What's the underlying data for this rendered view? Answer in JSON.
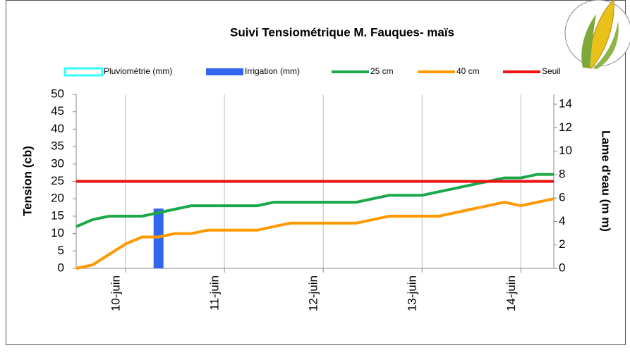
{
  "chart_data": {
    "type": "combo",
    "title": "Suivi Tensiométrique M. Fauques- maïs",
    "y_label": "Tension (cb)",
    "y2_label": "Lame d'eau (m m)",
    "categories": [
      null,
      null,
      null,
      "10-juin",
      null,
      null,
      null,
      null,
      null,
      "11-juin",
      null,
      null,
      null,
      null,
      null,
      "12-juin",
      null,
      null,
      null,
      null,
      null,
      "13-juin",
      null,
      null,
      null,
      null,
      null,
      "14-juin",
      null,
      null
    ],
    "ylim": [
      0,
      50
    ],
    "yticks": [
      0,
      5,
      10,
      15,
      20,
      25,
      30,
      35,
      40,
      45,
      50
    ],
    "y2lim": [
      0,
      14.84
    ],
    "y2ticks": [
      0,
      2,
      4,
      6,
      8,
      10,
      12,
      14
    ],
    "grid": "x",
    "series": [
      {
        "name": "Pluviométrie (mm)",
        "type": "bar",
        "axis": "y2",
        "color": "#33ffff",
        "values": [
          null,
          null,
          null,
          null,
          null,
          null,
          null,
          null,
          null,
          null,
          null,
          null,
          null,
          null,
          null,
          null,
          null,
          null,
          null,
          null,
          null,
          null,
          null,
          null,
          null,
          null,
          null,
          null,
          null,
          null
        ]
      },
      {
        "name": "Irrigation (mm)",
        "type": "bar",
        "axis": "y2",
        "color": "#3366ee",
        "values": [
          null,
          null,
          null,
          null,
          null,
          5.1,
          null,
          null,
          null,
          null,
          null,
          null,
          null,
          null,
          null,
          null,
          null,
          null,
          null,
          null,
          null,
          null,
          null,
          null,
          null,
          null,
          null,
          null,
          null,
          null
        ]
      },
      {
        "name": "25 cm",
        "type": "line",
        "color": "#1aa84a",
        "values": [
          12,
          14,
          15,
          15,
          15,
          16,
          17,
          18,
          18,
          18,
          18,
          18,
          19,
          19,
          19,
          19,
          19,
          19,
          20,
          21,
          21,
          21,
          22,
          23,
          24,
          25,
          26,
          26,
          27,
          27
        ]
      },
      {
        "name": "40 cm",
        "type": "line",
        "color": "#ff9900",
        "values": [
          0,
          1,
          4,
          7,
          9,
          9,
          10,
          10,
          11,
          11,
          11,
          11,
          12,
          13,
          13,
          13,
          13,
          13,
          14,
          15,
          15,
          15,
          15,
          16,
          17,
          18,
          19,
          18,
          19,
          20
        ]
      },
      {
        "name": "Seuil",
        "type": "line",
        "color": "#ee1111",
        "values": [
          25,
          25,
          25,
          25,
          25,
          25,
          25,
          25,
          25,
          25,
          25,
          25,
          25,
          25,
          25,
          25,
          25,
          25,
          25,
          25,
          25,
          25,
          25,
          25,
          25,
          25,
          25,
          25,
          25,
          25
        ]
      }
    ]
  }
}
